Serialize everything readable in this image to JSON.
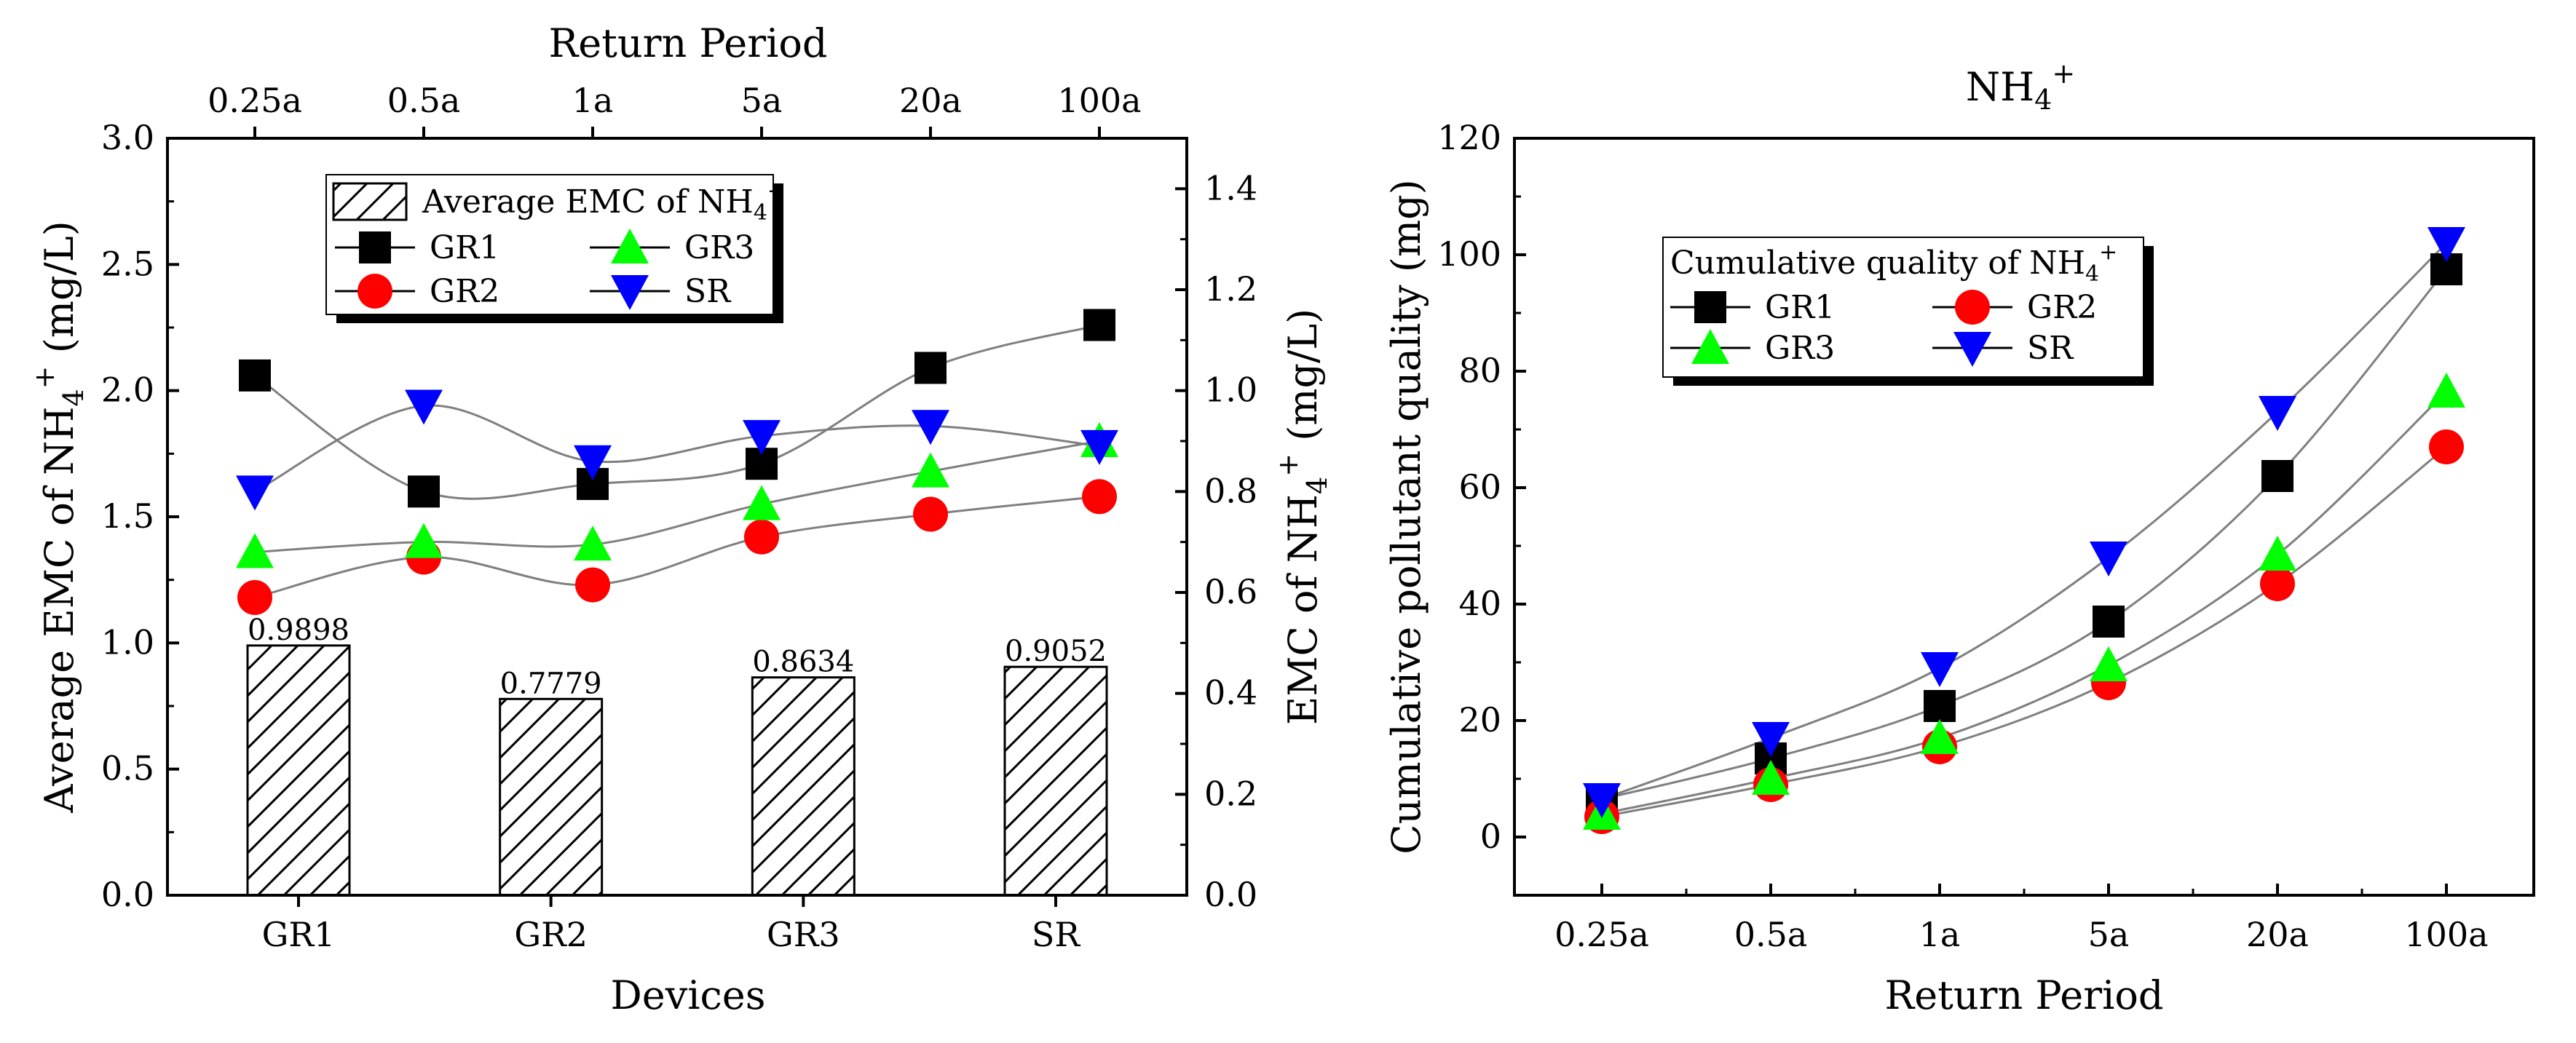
{
  "colors": {
    "GR1": "#000000",
    "GR2": "#ff0000",
    "GR3": "#00ff00",
    "SR": "#0000ff",
    "axis": "#000000",
    "line": "#7f7f7f"
  },
  "chart_data": [
    {
      "type": "bar",
      "title": "Return Period",
      "xlabel": "Devices",
      "ylabel": "Average EMC of NH4+ (mg/L)",
      "ylabel_parts": [
        "Average EMC of NH",
        "4",
        "+",
        " (mg/L)"
      ],
      "y2label": "EMC of NH4+ (mg/L)",
      "y2label_parts": [
        "EMC of NH",
        "4",
        "+",
        " (mg/L)"
      ],
      "categories": [
        "GR1",
        "GR2",
        "GR3",
        "SR"
      ],
      "bar_series": {
        "name": "Average EMC of NH4+",
        "legend_parts": [
          "Average EMC of NH",
          "4",
          "+"
        ],
        "values": [
          0.9898,
          0.7779,
          0.8634,
          0.9052
        ],
        "labels": [
          "0.9898",
          "0.7779",
          "0.8634",
          "0.9052"
        ]
      },
      "ylim": [
        0,
        3.0
      ],
      "yticks": [
        "0.0",
        "0.5",
        "1.0",
        "1.5",
        "2.0",
        "2.5",
        "3.0"
      ],
      "y2lim": [
        0,
        1.5
      ],
      "y2ticks": [
        "0.0",
        "0.2",
        "0.4",
        "0.6",
        "0.8",
        "1.0",
        "1.2",
        "1.4"
      ],
      "top_axis_ticks": [
        "0.25a",
        "0.5a",
        "1a",
        "5a",
        "20a",
        "100a"
      ],
      "line_series": [
        {
          "name": "GR1",
          "marker": "square",
          "values": [
            1.03,
            0.8,
            0.815,
            0.855,
            1.045,
            1.13
          ]
        },
        {
          "name": "GR2",
          "marker": "circle",
          "values": [
            0.59,
            0.67,
            0.615,
            0.71,
            0.755,
            0.79
          ]
        },
        {
          "name": "GR3",
          "marker": "triangle-up",
          "values": [
            0.68,
            0.7,
            0.695,
            0.775,
            0.84,
            0.9
          ]
        },
        {
          "name": "SR",
          "marker": "triangle-down",
          "values": [
            0.8,
            0.97,
            0.86,
            0.91,
            0.93,
            0.89
          ]
        }
      ],
      "legend": {
        "position": "top-left",
        "entries": [
          "GR1",
          "GR3",
          "GR2",
          "SR"
        ]
      }
    },
    {
      "type": "line",
      "title": "NH4+",
      "title_parts": [
        "NH",
        "4",
        "+"
      ],
      "xlabel": "Return Period",
      "ylabel": "Cumulative pollutant quality (mg)",
      "categories": [
        "0.25a",
        "0.5a",
        "1a",
        "5a",
        "20a",
        "100a"
      ],
      "ylim": [
        -10,
        120
      ],
      "yticks": [
        "0",
        "20",
        "40",
        "60",
        "80",
        "100",
        "120"
      ],
      "series": [
        {
          "name": "GR1",
          "marker": "square",
          "values": [
            6.5,
            13.5,
            22.5,
            37,
            62,
            97.5
          ]
        },
        {
          "name": "GR2",
          "marker": "circle",
          "values": [
            3.5,
            9,
            15.5,
            26.5,
            43.5,
            67
          ]
        },
        {
          "name": "GR3",
          "marker": "triangle-up",
          "values": [
            4,
            10,
            17,
            29.5,
            48.5,
            76.5
          ]
        },
        {
          "name": "SR",
          "marker": "triangle-down",
          "values": [
            6.5,
            17,
            29,
            48,
            73,
            102
          ]
        }
      ],
      "legend": {
        "title": "Cumulative quality of NH4+",
        "title_parts": [
          "Cumulative quality of NH",
          "4",
          "+"
        ],
        "position": "top-left",
        "entries": [
          "GR1",
          "GR2",
          "GR3",
          "SR"
        ]
      }
    }
  ]
}
